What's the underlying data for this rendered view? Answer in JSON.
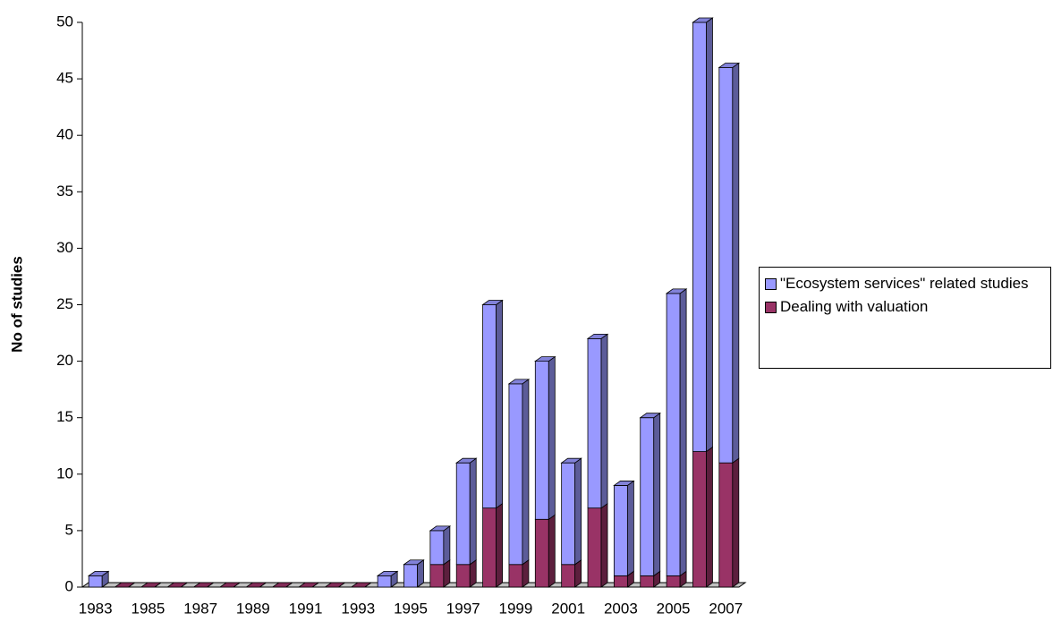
{
  "chart_data": {
    "type": "stacked-bar-3d",
    "y_label": "No of studies",
    "categories": [
      "1983",
      null,
      "1985",
      null,
      "1987",
      null,
      "1989",
      null,
      "1991",
      null,
      "1993",
      null,
      "1995",
      null,
      "1997",
      null,
      "1999",
      null,
      "2001",
      null,
      "2003",
      null,
      "2005",
      null,
      "2007"
    ],
    "series": [
      {
        "name": "Dealing with valuation",
        "color": "#993366",
        "values": [
          0,
          0,
          0,
          0,
          0,
          0,
          0,
          0,
          0,
          0,
          0,
          0,
          0,
          2,
          2,
          7,
          2,
          6,
          2,
          7,
          1,
          1,
          1,
          12,
          11
        ]
      },
      {
        "name": "\"Ecosystem services\" related studies",
        "color": "#9999ff",
        "values": [
          1,
          0,
          0,
          0,
          0,
          0,
          0,
          0,
          0,
          0,
          0,
          1,
          2,
          3,
          9,
          18,
          16,
          14,
          9,
          15,
          8,
          14,
          25,
          38,
          35
        ]
      }
    ],
    "legend_order": [
      1,
      0
    ],
    "ylim": [
      0,
      50
    ],
    "yticks": [
      0,
      5,
      10,
      15,
      20,
      25,
      30,
      35,
      40,
      45,
      50
    ]
  }
}
